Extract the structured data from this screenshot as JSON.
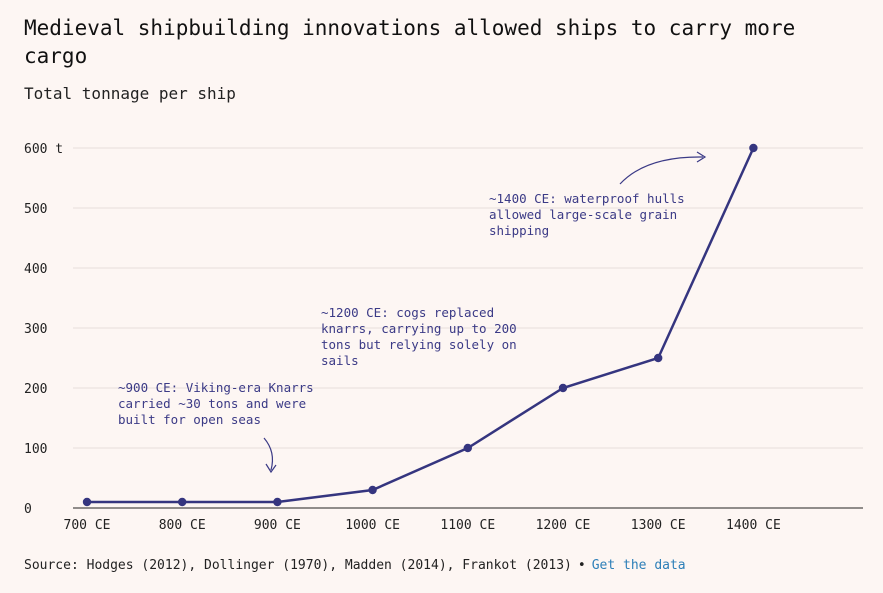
{
  "title": "Medieval shipbuilding innovations allowed ships to carry more cargo",
  "subtitle": "Total tonnage per ship",
  "chart_data": {
    "type": "line",
    "categories": [
      "700 CE",
      "800 CE",
      "900 CE",
      "1000 CE",
      "1100 CE",
      "1200 CE",
      "1300 CE",
      "1400 CE"
    ],
    "x": [
      700,
      800,
      900,
      1000,
      1100,
      1200,
      1300,
      1400
    ],
    "values": [
      10,
      10,
      10,
      30,
      100,
      200,
      250,
      600
    ],
    "ylim": [
      0,
      600
    ],
    "yticks": [
      0,
      100,
      200,
      300,
      400,
      500,
      600
    ],
    "ytick_labels": [
      "0",
      "100",
      "200",
      "300",
      "400",
      "500",
      "600 t"
    ],
    "series_color": "#35357f",
    "grid": true
  },
  "annotations": [
    {
      "text_lines": [
        "~900 CE: Viking-era Knarrs",
        "carried ~30 tons and were",
        "built for open seas"
      ]
    },
    {
      "text_lines": [
        "~1200 CE: cogs replaced",
        "knarrs, carrying up to 200",
        "tons but relying solely on",
        "sails"
      ]
    },
    {
      "text_lines": [
        "~1400 CE: waterproof hulls",
        "allowed large-scale grain",
        "shipping"
      ]
    }
  ],
  "footer": {
    "source": "Source: Hodges (2012), Dollinger (1970), Madden (2014), Frankot (2013)",
    "separator": "•",
    "link_label": "Get the data"
  },
  "colors": {
    "background": "#fdf6f3",
    "line": "#35357f",
    "annotation": "#3b3a86",
    "link": "#2d7fb8",
    "grid": "#e6dedb"
  }
}
